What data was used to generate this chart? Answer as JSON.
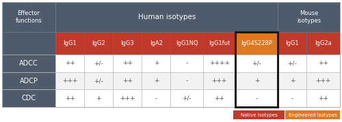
{
  "col_widths_rel": [
    1.45,
    0.78,
    0.78,
    0.78,
    0.78,
    0.88,
    0.88,
    1.15,
    0.78,
    0.9
  ],
  "header1_labels": [
    "Effector\nfunctions",
    "Human isotypes",
    "Mouse\nisotypes"
  ],
  "header1_spans": [
    1,
    7,
    2
  ],
  "header2_labels": [
    "",
    "IgG1",
    "IgG2",
    "IgG3",
    "IgA2",
    "IgG1NQ",
    "IgG1fut",
    "IgG4S228P",
    "IgG1",
    "IgG2a"
  ],
  "header2_colors": [
    "#4d5b6b",
    "#c0392b",
    "#c0392b",
    "#c0392b",
    "#c0392b",
    "#c0392b",
    "#c0392b",
    "#e07820",
    "#c0392b",
    "#c0392b"
  ],
  "row_labels": [
    "ADCC",
    "ADCP",
    "CDC"
  ],
  "row_label_bg": "#4d5b6b",
  "row_data": [
    [
      "++",
      "+/-",
      "++",
      "+",
      "-",
      "++++",
      "+/-",
      "+/-",
      "++"
    ],
    [
      "+++",
      "+/-",
      "++",
      "+",
      "-",
      "+++",
      "+",
      "+",
      "+++"
    ],
    [
      "++",
      "+",
      "+++",
      "-",
      "+/-",
      "++",
      "-",
      "-",
      "++"
    ]
  ],
  "header1_bg": "#4d5b6b",
  "row_bgs": [
    "#ffffff",
    "#f2f2f2",
    "#ffffff"
  ],
  "cell_text_color": "#555555",
  "header_text_color": "#ffffff",
  "row_label_text_color": "#ffffff",
  "highlight_col_idx": 7,
  "highlight_border_color": "#1a1a1a",
  "native_color": "#c0392b",
  "engineered_color": "#e07820",
  "legend_native_text": "Native isotypes",
  "legend_engineered_text": "Engineered isotypes",
  "grid_color": "#bbbbbb",
  "fig_width": 5.0,
  "fig_height": 1.79
}
